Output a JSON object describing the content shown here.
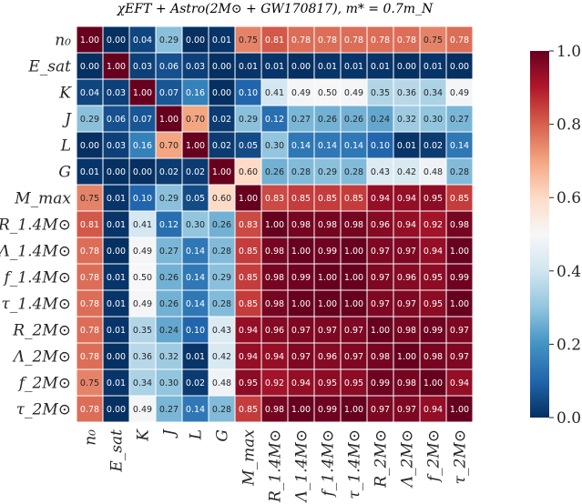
{
  "chart_data": {
    "type": "heatmap",
    "title": "χEFT + Astro(2M⊙ + GW170817),  m* = 0.7m_N",
    "labels": [
      "n₀",
      "E_sat",
      "K",
      "J",
      "L",
      "G",
      "M_max",
      "R_1.4M⊙",
      "Λ_1.4M⊙",
      "f_1.4M⊙",
      "τ_1.4M⊙",
      "R_2M⊙",
      "Λ_2M⊙",
      "f_2M⊙",
      "τ_2M⊙"
    ],
    "row_labels": [
      "n₀",
      "E_sat",
      "K",
      "J",
      "L",
      "G",
      "M_max",
      "R_1.4M⊙",
      "Λ_1.4M⊙",
      "f_1.4M⊙",
      "τ_1.4M⊙",
      "R_2M⊙",
      "Λ_2M⊙",
      "f_2M⊙",
      "τ_2M⊙"
    ],
    "col_labels": [
      "n₀",
      "E_sat",
      "K",
      "J",
      "L",
      "G",
      "M_max",
      "R_1.4M⊙",
      "Λ_1.4M⊙",
      "f_1.4M⊙",
      "τ_1.4M⊙",
      "R_2M⊙",
      "Λ_2M⊙",
      "f_2M⊙",
      "τ_2M⊙"
    ],
    "values": [
      [
        1.0,
        0.0,
        0.04,
        0.29,
        0.0,
        0.01,
        0.75,
        0.81,
        0.78,
        0.78,
        0.78,
        0.78,
        0.78,
        0.75,
        0.78
      ],
      [
        0.0,
        1.0,
        0.03,
        0.06,
        0.03,
        0.0,
        0.01,
        0.01,
        0.0,
        0.01,
        0.01,
        0.01,
        0.0,
        0.01,
        0.0
      ],
      [
        0.04,
        0.03,
        1.0,
        0.07,
        0.16,
        0.0,
        0.1,
        0.41,
        0.49,
        0.5,
        0.49,
        0.35,
        0.36,
        0.34,
        0.49
      ],
      [
        0.29,
        0.06,
        0.07,
        1.0,
        0.7,
        0.02,
        0.29,
        0.12,
        0.27,
        0.26,
        0.26,
        0.24,
        0.32,
        0.3,
        0.27
      ],
      [
        0.0,
        0.03,
        0.16,
        0.7,
        1.0,
        0.02,
        0.05,
        0.3,
        0.14,
        0.14,
        0.14,
        0.1,
        0.01,
        0.02,
        0.14
      ],
      [
        0.01,
        0.0,
        0.0,
        0.02,
        0.02,
        1.0,
        0.6,
        0.26,
        0.28,
        0.29,
        0.28,
        0.43,
        0.42,
        0.48,
        0.28
      ],
      [
        0.75,
        0.01,
        0.1,
        0.29,
        0.05,
        0.6,
        1.0,
        0.83,
        0.85,
        0.85,
        0.85,
        0.94,
        0.94,
        0.95,
        0.85
      ],
      [
        0.81,
        0.01,
        0.41,
        0.12,
        0.3,
        0.26,
        0.83,
        1.0,
        0.98,
        0.98,
        0.98,
        0.96,
        0.94,
        0.92,
        0.98
      ],
      [
        0.78,
        0.0,
        0.49,
        0.27,
        0.14,
        0.28,
        0.85,
        0.98,
        1.0,
        0.99,
        1.0,
        0.97,
        0.97,
        0.94,
        1.0
      ],
      [
        0.78,
        0.01,
        0.5,
        0.26,
        0.14,
        0.29,
        0.85,
        0.98,
        0.99,
        1.0,
        1.0,
        0.97,
        0.96,
        0.95,
        0.99
      ],
      [
        0.78,
        0.01,
        0.49,
        0.26,
        0.14,
        0.28,
        0.85,
        0.98,
        1.0,
        1.0,
        1.0,
        0.97,
        0.97,
        0.95,
        1.0
      ],
      [
        0.78,
        0.01,
        0.35,
        0.24,
        0.1,
        0.43,
        0.94,
        0.96,
        0.97,
        0.97,
        0.97,
        1.0,
        0.98,
        0.99,
        0.97
      ],
      [
        0.78,
        0.0,
        0.36,
        0.32,
        0.01,
        0.42,
        0.94,
        0.94,
        0.97,
        0.96,
        0.97,
        0.98,
        1.0,
        0.98,
        0.97
      ],
      [
        0.75,
        0.01,
        0.34,
        0.3,
        0.02,
        0.48,
        0.95,
        0.92,
        0.94,
        0.95,
        0.95,
        0.99,
        0.98,
        1.0,
        0.94
      ],
      [
        0.78,
        0.0,
        0.49,
        0.27,
        0.14,
        0.28,
        0.85,
        0.98,
        1.0,
        0.99,
        1.0,
        0.97,
        0.97,
        0.94,
        1.0
      ]
    ],
    "colorbar": {
      "colormap": "RdBu_r",
      "vmin": 0.0,
      "vmax": 1.0,
      "ticks": [
        "0.0",
        "0.2",
        "0.4",
        "0.6",
        "0.8",
        "1.0"
      ]
    },
    "grid": true,
    "legend": "none"
  }
}
